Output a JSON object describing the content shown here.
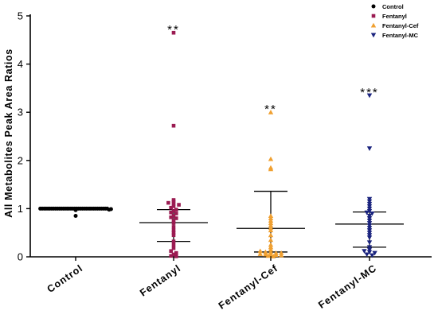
{
  "chart_data": {
    "type": "scatter",
    "ylabel": "All Metabolites Peak Area Ratios",
    "xlabel": "",
    "ylim": [
      0,
      5
    ],
    "yticks": [
      0,
      1,
      2,
      3,
      4,
      5
    ],
    "categories": [
      "Control",
      "Fentanyl",
      "Fentanyl-Cef",
      "Fentanyl-MC"
    ],
    "legend": {
      "position": "top-right"
    },
    "series": [
      {
        "name": "Control",
        "marker": "circle",
        "color": "#000000",
        "values": [
          1,
          1,
          1,
          1,
          1,
          1,
          1,
          1,
          1,
          1,
          1,
          1,
          1,
          1,
          1,
          1,
          1,
          1,
          1,
          1,
          1,
          1,
          1,
          1,
          1,
          1,
          1,
          1,
          1,
          1,
          1,
          1,
          1,
          1,
          1,
          1,
          0.98,
          0.99,
          0.97,
          0.85
        ],
        "mean": 1.0,
        "sd_upper": 1.0,
        "sd_lower": 1.0,
        "significance": ""
      },
      {
        "name": "Fentanyl",
        "marker": "square",
        "color": "#9b1b52",
        "values": [
          4.65,
          2.72,
          1.18,
          1.15,
          1.12,
          1.1,
          1.08,
          1.05,
          1.02,
          0.98,
          0.95,
          0.92,
          0.9,
          0.85,
          0.82,
          0.8,
          0.75,
          0.7,
          0.62,
          0.55,
          0.5,
          0.45,
          0.32,
          0.25,
          0.18,
          0.12,
          0.08,
          0.05,
          0.02,
          0.01
        ],
        "mean": 0.71,
        "sd_upper": 0.98,
        "sd_lower": 0.32,
        "significance": "**"
      },
      {
        "name": "Fentanyl-Cef",
        "marker": "triangle-up",
        "color": "#f0a030",
        "values": [
          3.0,
          2.03,
          1.85,
          1.82,
          0.85,
          0.8,
          0.75,
          0.7,
          0.65,
          0.6,
          0.55,
          0.45,
          0.35,
          0.25,
          0.2,
          0.15,
          0.12,
          0.1,
          0.1,
          0.08,
          0.08,
          0.06,
          0.05,
          0.05,
          0.04,
          0.03,
          0.02,
          0.01
        ],
        "mean": 0.59,
        "sd_upper": 1.36,
        "sd_lower": 0.1,
        "significance": "**"
      },
      {
        "name": "Fentanyl-MC",
        "marker": "triangle-down",
        "color": "#1a237e",
        "values": [
          3.35,
          2.25,
          1.2,
          1.15,
          1.1,
          1.05,
          1.0,
          0.95,
          0.92,
          0.9,
          0.85,
          0.8,
          0.75,
          0.7,
          0.65,
          0.6,
          0.55,
          0.5,
          0.45,
          0.4,
          0.3,
          0.2,
          0.15,
          0.12,
          0.1,
          0.08,
          0.05,
          0.03
        ],
        "mean": 0.68,
        "sd_upper": 0.93,
        "sd_lower": 0.2,
        "significance": "***"
      }
    ]
  }
}
